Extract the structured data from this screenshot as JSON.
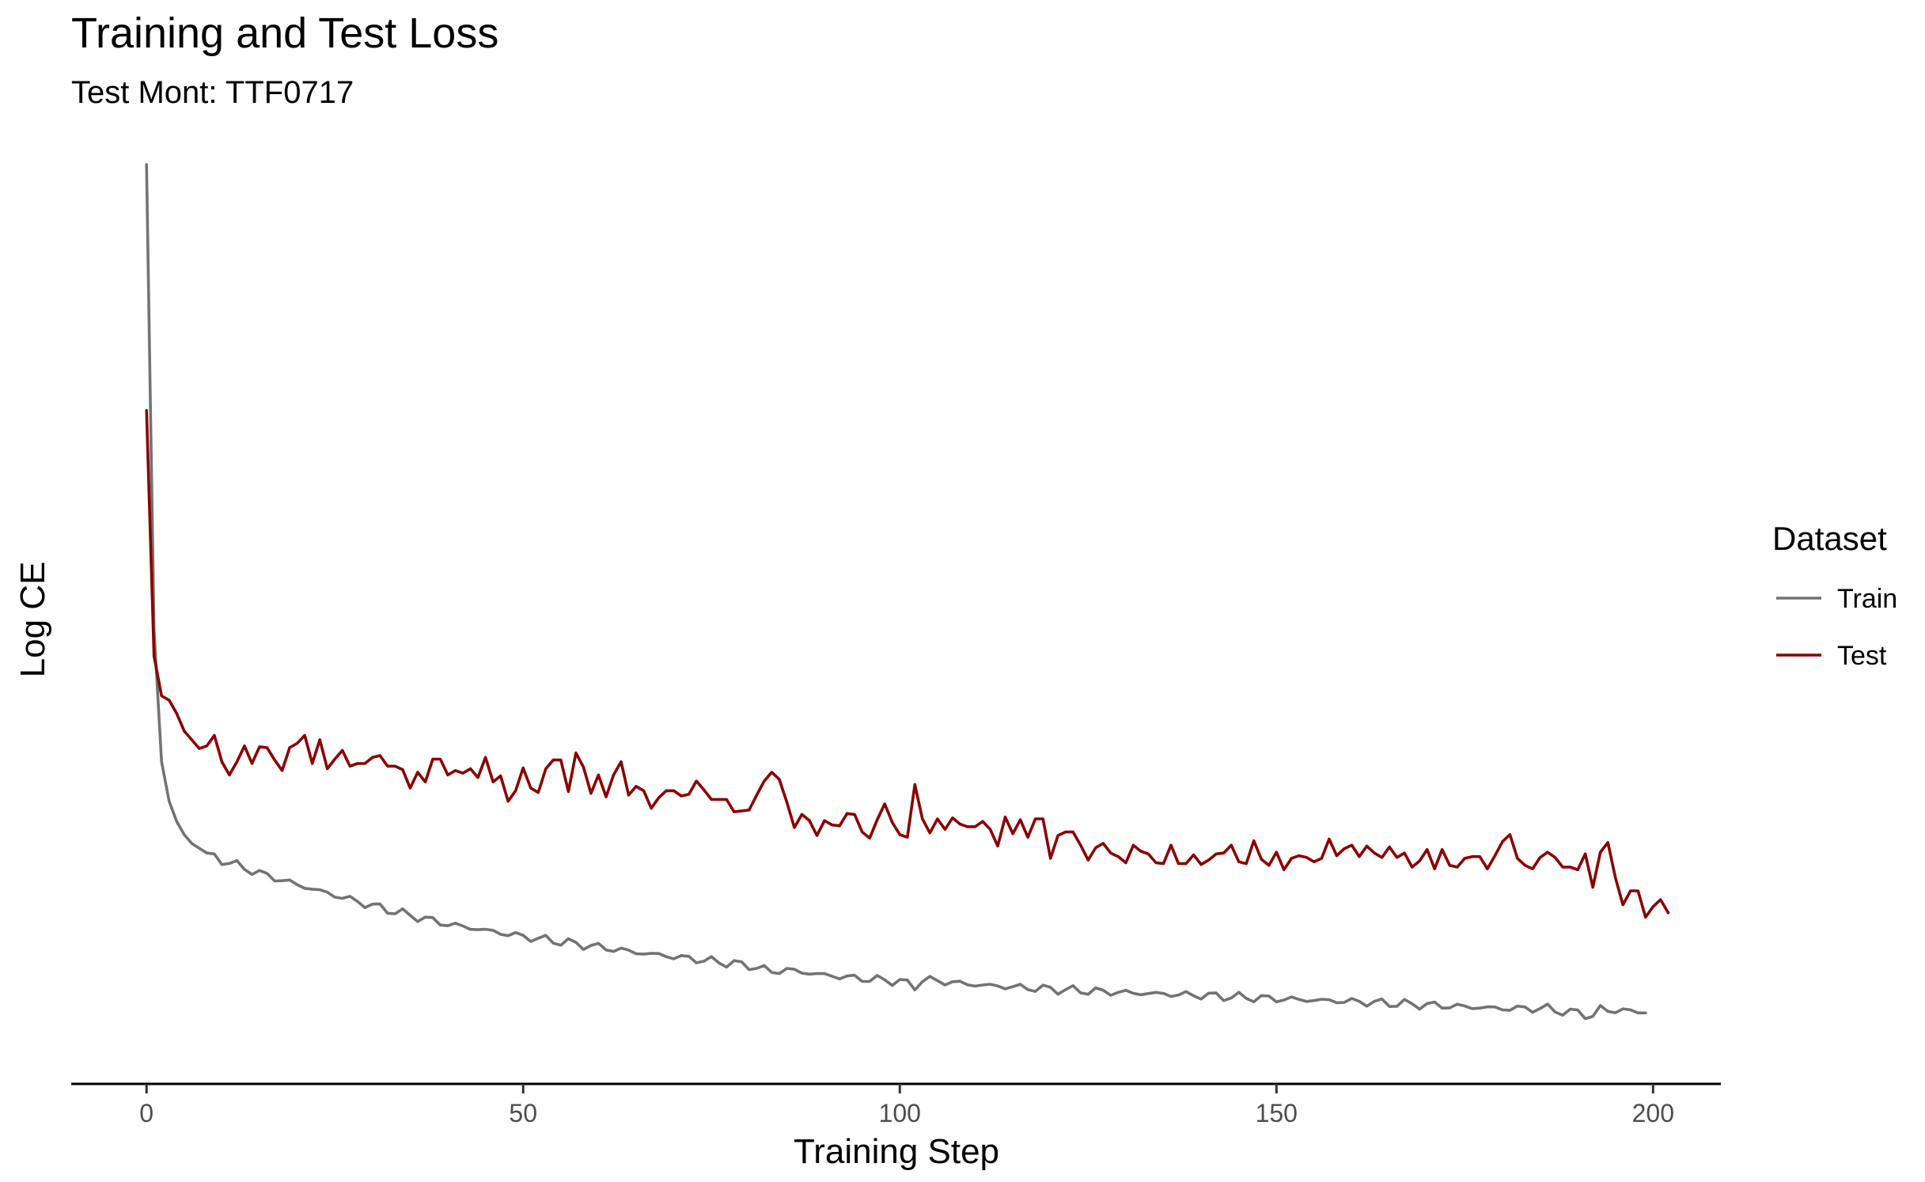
{
  "chart_data": {
    "type": "line",
    "title": "Training and Test Loss",
    "subtitle": "Test Mont: TTF0717",
    "xlabel": "Training Step",
    "ylabel": "Log CE",
    "xlim": [
      -10,
      209
    ],
    "ylim": [
      0.0,
      1.0
    ],
    "x_ticks": [
      0,
      50,
      100,
      150,
      200
    ],
    "y_ticks_shown": false,
    "grid": false,
    "legend": {
      "title": "Dataset",
      "placement": "right"
    },
    "series": [
      {
        "name": "Train",
        "color": "#737373",
        "key_points": [
          [
            0,
            1.0
          ],
          [
            1,
            0.47
          ],
          [
            2,
            0.32
          ],
          [
            3,
            0.275
          ],
          [
            4,
            0.252
          ],
          [
            5,
            0.237
          ],
          [
            6,
            0.227
          ],
          [
            8,
            0.216
          ],
          [
            10,
            0.208
          ],
          [
            15,
            0.193
          ],
          [
            20,
            0.18
          ],
          [
            25,
            0.168
          ],
          [
            30,
            0.156
          ],
          [
            35,
            0.145
          ],
          [
            40,
            0.135
          ],
          [
            45,
            0.128
          ],
          [
            50,
            0.121
          ],
          [
            55,
            0.115
          ],
          [
            60,
            0.109
          ],
          [
            65,
            0.103
          ],
          [
            70,
            0.098
          ],
          [
            75,
            0.093
          ],
          [
            80,
            0.088
          ],
          [
            83,
            0.081
          ],
          [
            85,
            0.083
          ],
          [
            90,
            0.077
          ],
          [
            95,
            0.073
          ],
          [
            100,
            0.07
          ],
          [
            102,
            0.064
          ],
          [
            103,
            0.072
          ],
          [
            110,
            0.066
          ],
          [
            120,
            0.061
          ],
          [
            130,
            0.057
          ],
          [
            140,
            0.054
          ],
          [
            150,
            0.05
          ],
          [
            160,
            0.047
          ],
          [
            170,
            0.043
          ],
          [
            180,
            0.039
          ],
          [
            186,
            0.039
          ],
          [
            189,
            0.034
          ],
          [
            190,
            0.035
          ],
          [
            192,
            0.03
          ],
          [
            193,
            0.038
          ],
          [
            199,
            0.035
          ]
        ]
      },
      {
        "name": "Test",
        "color": "#8b0000",
        "values": [
          0.72,
          0.44,
          0.395,
          0.39,
          0.375,
          0.355,
          0.345,
          0.335,
          0.338,
          0.35,
          0.32,
          0.305,
          0.32,
          0.338,
          0.318,
          0.337,
          0.336,
          0.322,
          0.31,
          0.336,
          0.341,
          0.35,
          0.318,
          0.345,
          0.312,
          0.323,
          0.333,
          0.315,
          0.318,
          0.318,
          0.325,
          0.327,
          0.315,
          0.315,
          0.311,
          0.29,
          0.308,
          0.297,
          0.323,
          0.323,
          0.305,
          0.31,
          0.307,
          0.312,
          0.302,
          0.325,
          0.297,
          0.304,
          0.275,
          0.287,
          0.313,
          0.29,
          0.285,
          0.312,
          0.322,
          0.322,
          0.286,
          0.33,
          0.314,
          0.284,
          0.305,
          0.28,
          0.305,
          0.32,
          0.282,
          0.292,
          0.287,
          0.267,
          0.279,
          0.287,
          0.287,
          0.281,
          0.283,
          0.298,
          0.288,
          0.277,
          0.277,
          0.277,
          0.263,
          0.264,
          0.265,
          0.282,
          0.298,
          0.308,
          0.3,
          0.274,
          0.245,
          0.26,
          0.253,
          0.236,
          0.253,
          0.248,
          0.247,
          0.261,
          0.26,
          0.24,
          0.233,
          0.254,
          0.272,
          0.251,
          0.237,
          0.234,
          0.294,
          0.255,
          0.239,
          0.255,
          0.243,
          0.256,
          0.249,
          0.246,
          0.246,
          0.252,
          0.243,
          0.224,
          0.257,
          0.238,
          0.254,
          0.234,
          0.255,
          0.255,
          0.21,
          0.236,
          0.24,
          0.24,
          0.225,
          0.208,
          0.222,
          0.227,
          0.216,
          0.212,
          0.205,
          0.225,
          0.218,
          0.215,
          0.205,
          0.204,
          0.225,
          0.204,
          0.204,
          0.214,
          0.203,
          0.208,
          0.215,
          0.216,
          0.225,
          0.206,
          0.204,
          0.23,
          0.209,
          0.202,
          0.217,
          0.197,
          0.21,
          0.213,
          0.211,
          0.206,
          0.21,
          0.232,
          0.213,
          0.221,
          0.225,
          0.212,
          0.224,
          0.216,
          0.211,
          0.223,
          0.211,
          0.216,
          0.2,
          0.207,
          0.22,
          0.198,
          0.22,
          0.202,
          0.2,
          0.21,
          0.212,
          0.212,
          0.198,
          0.213,
          0.229,
          0.237,
          0.21,
          0.202,
          0.198,
          0.211,
          0.217,
          0.211,
          0.2,
          0.2,
          0.197,
          0.215,
          0.177,
          0.217,
          0.228,
          0.188,
          0.157,
          0.173,
          0.173,
          0.143,
          0.155,
          0.163,
          0.148
        ]
      }
    ]
  }
}
